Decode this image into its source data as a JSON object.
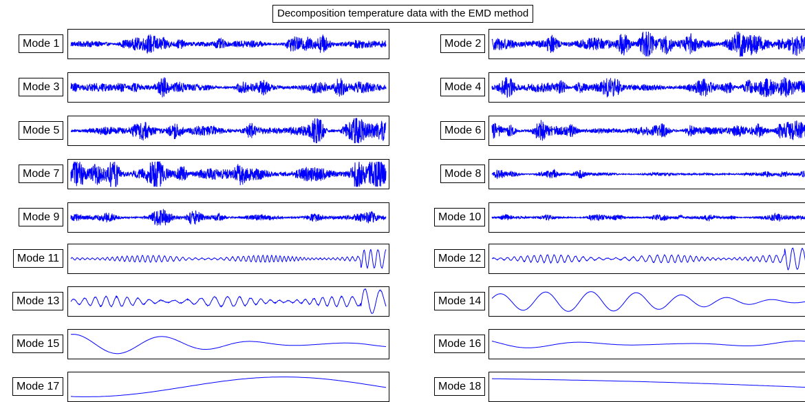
{
  "chart_data": {
    "type": "line",
    "title": "Decomposition temperature data with the EMD method",
    "xlabel": "",
    "ylabel": "",
    "grid": false,
    "legend": "none",
    "line_color": "#0000ff",
    "panels": [
      {
        "label": "Mode 1",
        "kind": "noise",
        "amplitude": 0.35,
        "frequency": 0
      },
      {
        "label": "Mode 2",
        "kind": "noise",
        "amplitude": 0.55,
        "frequency": 0
      },
      {
        "label": "Mode 3",
        "kind": "noise",
        "amplitude": 0.35,
        "frequency": 0
      },
      {
        "label": "Mode 4",
        "kind": "noise",
        "amplitude": 0.45,
        "frequency": 0
      },
      {
        "label": "Mode 5",
        "kind": "noise",
        "amplitude": 0.45,
        "frequency": 0
      },
      {
        "label": "Mode 6",
        "kind": "noise",
        "amplitude": 0.4,
        "frequency": 0
      },
      {
        "label": "Mode 7",
        "kind": "noise",
        "amplitude": 0.65,
        "frequency": 0
      },
      {
        "label": "Mode 8",
        "kind": "noise",
        "amplitude": 0.15,
        "frequency": 0
      },
      {
        "label": "Mode 9",
        "kind": "noise",
        "amplitude": 0.25,
        "frequency": 0
      },
      {
        "label": "Mode 10",
        "kind": "noise",
        "amplitude": 0.15,
        "frequency": 0
      },
      {
        "label": "Mode 11",
        "kind": "wiggle",
        "amplitude": 0.3,
        "frequency": 60
      },
      {
        "label": "Mode 12",
        "kind": "wiggle",
        "amplitude": 0.35,
        "frequency": 45
      },
      {
        "label": "Mode 13",
        "kind": "wiggle",
        "amplitude": 0.45,
        "frequency": 28
      },
      {
        "label": "Mode 14",
        "kind": "wave",
        "amplitude": 0.8,
        "frequency": 7
      },
      {
        "label": "Mode 15",
        "kind": "wave",
        "amplitude": 0.8,
        "frequency": 3.5
      },
      {
        "label": "Mode 16",
        "kind": "wave",
        "amplitude": 0.45,
        "frequency": 3
      },
      {
        "label": "Mode 17",
        "kind": "trend",
        "amplitude": 0.8,
        "frequency": 0.6
      },
      {
        "label": "Mode 18",
        "kind": "trend",
        "amplitude": 0.6,
        "frequency": 0.3
      }
    ]
  }
}
